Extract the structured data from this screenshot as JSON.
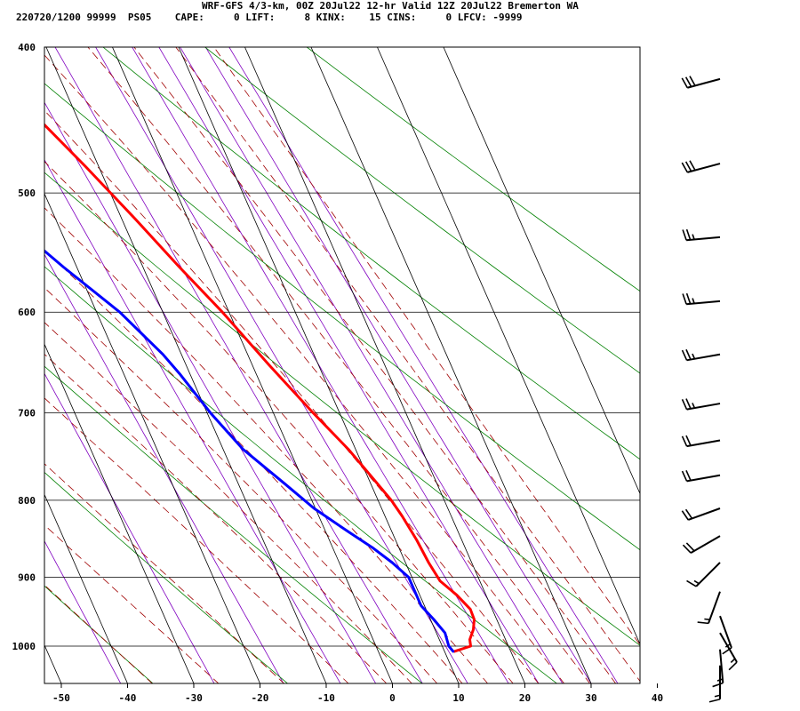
{
  "header": {
    "title_line": "WRF-GFS 4/3-km, 00Z 20Jul22 12-hr Valid 12Z 20Jul22 Bremerton WA",
    "stats_line": "220720/1200 99999  PS05    CAPE:     0 LIFT:     8 KINX:    15 CINS:     0 LFCV: -9999"
  },
  "colors": {
    "temperature": "#ff0000",
    "dewpoint": "#0000ff",
    "isotherm_grid": "#000000",
    "dry_adiabat": "#008000",
    "moist_adiabat": "#a00000",
    "mixing_ratio": "#8000c0",
    "wind_barb": "#000000"
  },
  "chart_data": {
    "type": "line",
    "subtype": "skew-t",
    "x_axis": {
      "ticks": [
        -50,
        -40,
        -30,
        -20,
        -10,
        0,
        10,
        20,
        30,
        40
      ],
      "range": [
        -50,
        40
      ]
    },
    "y_axis": {
      "ticks": [
        400,
        500,
        600,
        700,
        800,
        900,
        1000
      ],
      "range": [
        400,
        1050
      ],
      "log_scale": true
    },
    "series": [
      {
        "id": "temperature",
        "points": [
          {
            "p": 1008,
            "t": 11.5
          },
          {
            "p": 1000,
            "t": 14.3
          },
          {
            "p": 990,
            "t": 14.6
          },
          {
            "p": 975,
            "t": 15.8
          },
          {
            "p": 960,
            "t": 16.6
          },
          {
            "p": 945,
            "t": 16.7
          },
          {
            "p": 925,
            "t": 15.6
          },
          {
            "p": 905,
            "t": 14.0
          },
          {
            "p": 880,
            "t": 13.5
          },
          {
            "p": 850,
            "t": 13.2
          },
          {
            "p": 820,
            "t": 12.6
          },
          {
            "p": 800,
            "t": 12.0
          },
          {
            "p": 770,
            "t": 10.5
          },
          {
            "p": 740,
            "t": 8.9
          },
          {
            "p": 700,
            "t": 6.0
          },
          {
            "p": 650,
            "t": 2.5
          },
          {
            "p": 600,
            "t": -1.0
          },
          {
            "p": 560,
            "t": -4.5
          },
          {
            "p": 520,
            "t": -8.0
          },
          {
            "p": 480,
            "t": -12.0
          },
          {
            "p": 450,
            "t": -15.5
          },
          {
            "p": 420,
            "t": -19.5
          }
        ]
      },
      {
        "id": "dewpoint",
        "points": [
          {
            "p": 1008,
            "t": 11.3
          },
          {
            "p": 1000,
            "t": 11.0
          },
          {
            "p": 980,
            "t": 11.3
          },
          {
            "p": 960,
            "t": 10.5
          },
          {
            "p": 940,
            "t": 9.5
          },
          {
            "p": 920,
            "t": 9.5
          },
          {
            "p": 900,
            "t": 9.5
          },
          {
            "p": 880,
            "t": 8.0
          },
          {
            "p": 860,
            "t": 6.0
          },
          {
            "p": 840,
            "t": 3.5
          },
          {
            "p": 810,
            "t": -0.2
          },
          {
            "p": 780,
            "t": -3.0
          },
          {
            "p": 740,
            "t": -7.0
          },
          {
            "p": 700,
            "t": -9.5
          },
          {
            "p": 660,
            "t": -11.5
          },
          {
            "p": 640,
            "t": -12.8
          },
          {
            "p": 600,
            "t": -16.5
          },
          {
            "p": 560,
            "t": -22.0
          },
          {
            "p": 530,
            "t": -26.0
          },
          {
            "p": 500,
            "t": -32.0
          },
          {
            "p": 470,
            "t": -39.0
          },
          {
            "p": 440,
            "t": -45.0
          },
          {
            "p": 420,
            "t": -49.0
          }
        ]
      }
    ],
    "wind_barbs": [
      {
        "p": 420,
        "dir": 255,
        "kt": 30
      },
      {
        "p": 478,
        "dir": 255,
        "kt": 30
      },
      {
        "p": 535,
        "dir": 265,
        "kt": 25
      },
      {
        "p": 590,
        "dir": 265,
        "kt": 25
      },
      {
        "p": 640,
        "dir": 260,
        "kt": 25
      },
      {
        "p": 690,
        "dir": 260,
        "kt": 25
      },
      {
        "p": 730,
        "dir": 260,
        "kt": 20
      },
      {
        "p": 770,
        "dir": 260,
        "kt": 20
      },
      {
        "p": 810,
        "dir": 250,
        "kt": 20
      },
      {
        "p": 845,
        "dir": 240,
        "kt": 20
      },
      {
        "p": 880,
        "dir": 225,
        "kt": 15
      },
      {
        "p": 920,
        "dir": 200,
        "kt": 15
      },
      {
        "p": 955,
        "dir": 160,
        "kt": 15
      },
      {
        "p": 980,
        "dir": 150,
        "kt": 15
      },
      {
        "p": 1005,
        "dir": 175,
        "kt": 15
      },
      {
        "p": 1030,
        "dir": 180,
        "kt": 15
      }
    ]
  }
}
